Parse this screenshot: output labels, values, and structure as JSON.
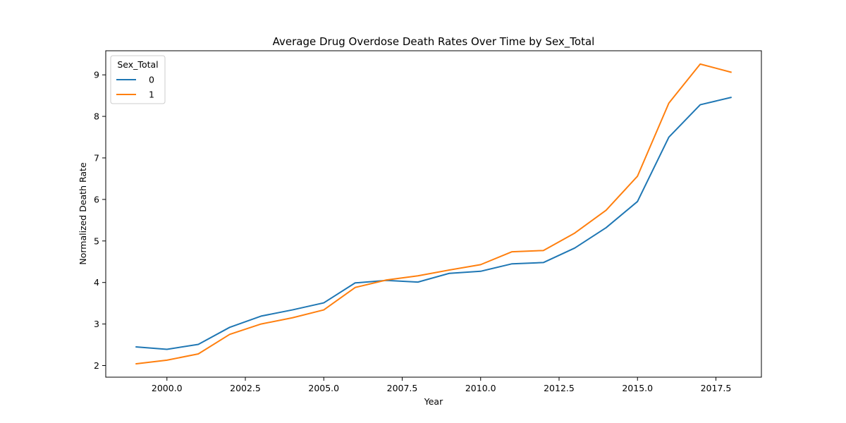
{
  "chart_data": {
    "type": "line",
    "title": "Average Drug Overdose Death Rates Over Time by Sex_Total",
    "xlabel": "Year",
    "ylabel": "Normalized Death Rate",
    "xlim": [
      1998.05,
      2018.95
    ],
    "ylim": [
      1.72,
      9.58
    ],
    "xticks": [
      2000.0,
      2002.5,
      2005.0,
      2007.5,
      2010.0,
      2012.5,
      2015.0,
      2017.5
    ],
    "xtick_labels": [
      "2000.0",
      "2002.5",
      "2005.0",
      "2007.5",
      "2010.0",
      "2012.5",
      "2015.0",
      "2017.5"
    ],
    "yticks": [
      2,
      3,
      4,
      5,
      6,
      7,
      8,
      9
    ],
    "ytick_labels": [
      "2",
      "3",
      "4",
      "5",
      "6",
      "7",
      "8",
      "9"
    ],
    "grid": false,
    "legend": {
      "title": "Sex_Total",
      "placement": "top-left"
    },
    "x": [
      1999,
      2000,
      2001,
      2002,
      2003,
      2004,
      2005,
      2006,
      2007,
      2008,
      2009,
      2010,
      2011,
      2012,
      2013,
      2014,
      2015,
      2016,
      2017,
      2018
    ],
    "series": [
      {
        "name": "0",
        "color": "#1f77b4",
        "values": [
          2.45,
          2.39,
          2.51,
          2.92,
          3.19,
          3.34,
          3.51,
          3.99,
          4.05,
          4.01,
          4.22,
          4.27,
          4.45,
          4.48,
          4.83,
          5.32,
          5.95,
          7.5,
          8.28,
          8.46
        ]
      },
      {
        "name": "1",
        "color": "#ff7f0e",
        "values": [
          2.04,
          2.13,
          2.28,
          2.75,
          3.0,
          3.15,
          3.34,
          3.88,
          4.06,
          4.16,
          4.3,
          4.43,
          4.74,
          4.77,
          5.19,
          5.74,
          6.56,
          8.32,
          9.26,
          9.06
        ]
      }
    ]
  }
}
